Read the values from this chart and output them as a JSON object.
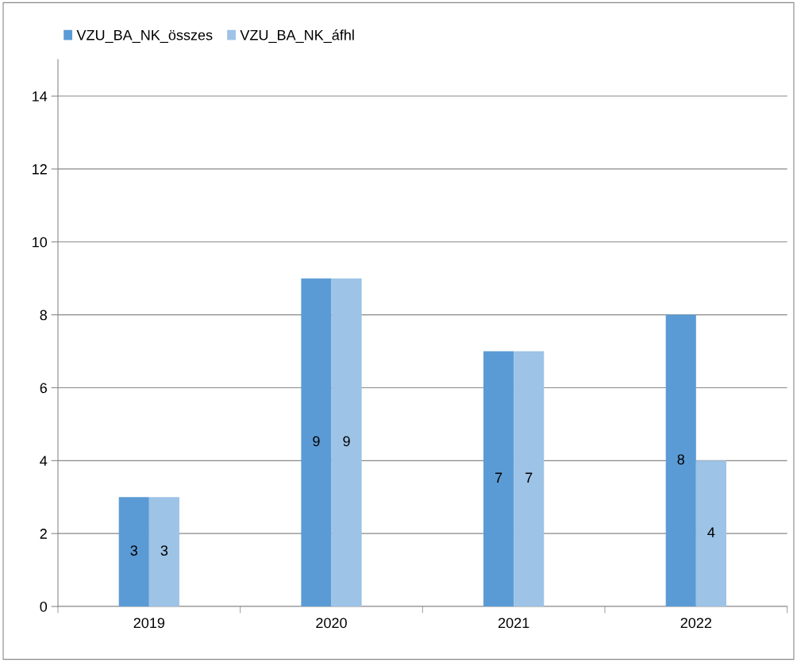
{
  "chart_data": {
    "type": "bar",
    "categories": [
      "2019",
      "2020",
      "2021",
      "2022"
    ],
    "series": [
      {
        "name": "VZU_BA_NK_összes",
        "color": "#5b9bd5",
        "values": [
          3,
          9,
          7,
          8
        ]
      },
      {
        "name": "VZU_BA_NK_áfhl",
        "color": "#9dc3e6",
        "values": [
          3,
          9,
          7,
          4
        ]
      }
    ],
    "ylim": [
      0,
      15
    ],
    "yticks": [
      0,
      2,
      4,
      6,
      8,
      10,
      12,
      14
    ],
    "grid": "y",
    "legend": "top left",
    "data_labels": true
  }
}
